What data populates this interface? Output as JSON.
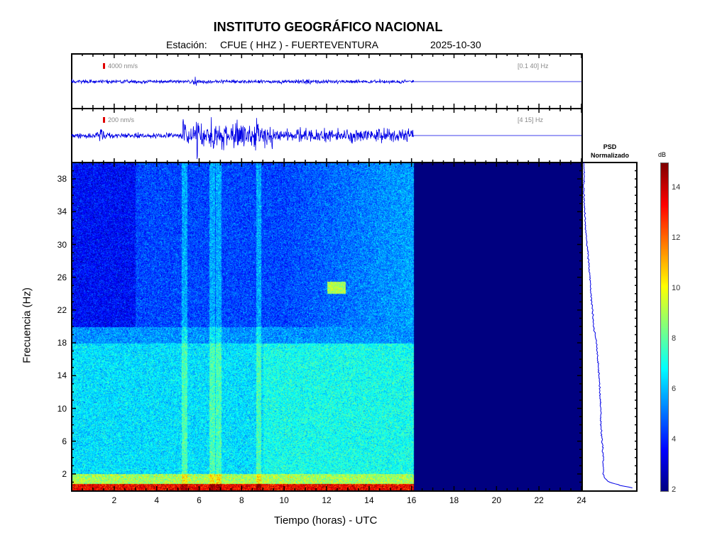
{
  "header": {
    "title": "INSTITUTO GEOGRÁFICO NACIONAL",
    "station_label": "Estación:",
    "station": "CFUE ( HHZ ) - FUERTEVENTURA",
    "date": "2025-10-30"
  },
  "traces": [
    {
      "scale_label": "4000 nm/s",
      "band_label": "[0.1 40] Hz",
      "noise": 0.06,
      "events": [
        [
          5.8,
          0.25
        ],
        [
          11.1,
          0.12
        ]
      ]
    },
    {
      "scale_label": "200 nm/s",
      "band_label": "[4 15] Hz",
      "noise": 0.08,
      "events": [
        [
          1.4,
          0.6
        ],
        [
          5.3,
          0.7
        ],
        [
          5.9,
          1.0
        ],
        [
          6.6,
          0.9
        ],
        [
          7.2,
          0.8
        ],
        [
          7.8,
          0.5
        ],
        [
          8.7,
          1.0
        ],
        [
          9.3,
          0.4
        ],
        [
          14.7,
          0.45
        ]
      ]
    }
  ],
  "colors": {
    "trace": "#0000e6",
    "marker": "#e00000",
    "empty": "#00007f"
  },
  "chart_data": {
    "type": "heatmap",
    "xlabel": "Tiempo (horas) - UTC",
    "ylabel": "Frecuencia  (Hz)",
    "xlim": [
      0,
      24
    ],
    "ylim": [
      0,
      40
    ],
    "xticks": [
      2,
      4,
      6,
      8,
      10,
      12,
      14,
      16,
      18,
      20,
      22,
      24
    ],
    "yticks": [
      2,
      6,
      10,
      14,
      18,
      22,
      26,
      30,
      34,
      38
    ],
    "data_end_hour": 16.1,
    "colorbar": {
      "label": "dB",
      "range": [
        2,
        15
      ],
      "ticks": [
        2,
        4,
        6,
        8,
        10,
        12,
        14
      ]
    },
    "features": {
      "low_freq_band_db": 13,
      "mid_band_db": 6.5,
      "high_band_db": 4.5,
      "vertical_bands_hours": [
        5.3,
        6.6,
        6.9,
        8.8
      ],
      "patch": {
        "hours": [
          12,
          12.9
        ],
        "freq": [
          24,
          25.5
        ],
        "db": 9
      }
    },
    "psd": {
      "title": "PSD",
      "subtitle": "Normalizado",
      "freq": [
        0.2,
        0.6,
        1,
        1.5,
        2,
        4,
        5,
        6,
        8,
        10,
        14,
        18,
        20,
        22,
        24,
        26,
        30,
        32,
        34,
        36,
        40
      ],
      "value": [
        1.0,
        0.7,
        0.5,
        0.4,
        0.38,
        0.38,
        0.37,
        0.36,
        0.33,
        0.33,
        0.3,
        0.25,
        0.2,
        0.18,
        0.15,
        0.13,
        0.08,
        0.05,
        0.03,
        0.02,
        0.02
      ]
    }
  }
}
